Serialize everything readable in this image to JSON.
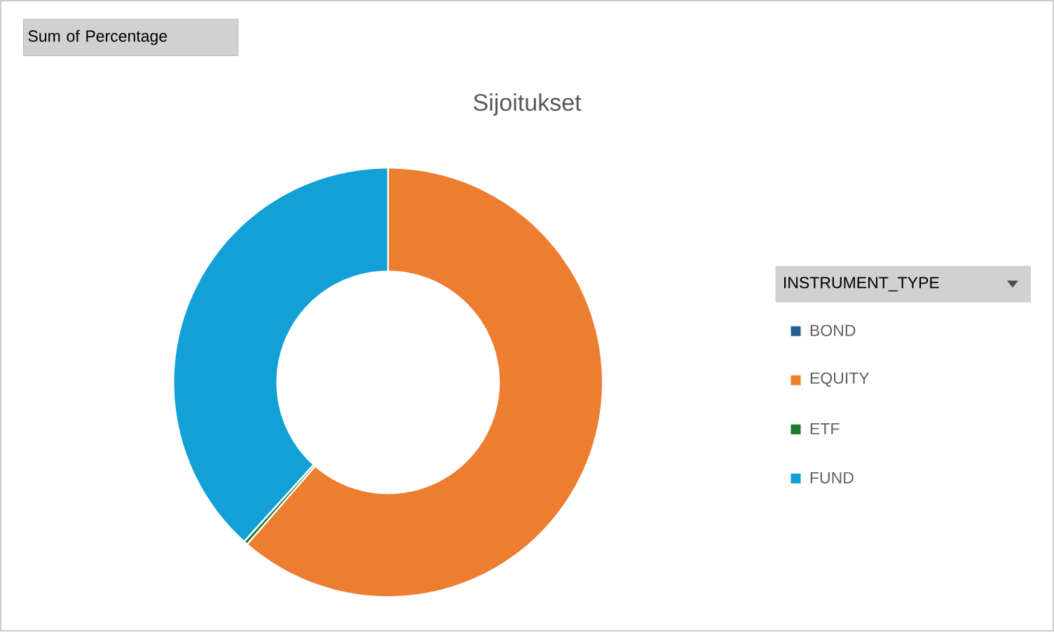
{
  "chart_data": {
    "type": "donut",
    "title": "Sijoitukset",
    "legend_title": "INSTRUMENT_TYPE",
    "annotations": [
      "Sum of Percentage"
    ],
    "categories": [
      "BOND",
      "EQUITY",
      "ETF",
      "FUND"
    ],
    "values": [
      0,
      61.4,
      0.3,
      38.3
    ],
    "colors": [
      "#255e91",
      "#ed7d31",
      "#1e7a2e",
      "#12a0d7"
    ],
    "legend": "right"
  }
}
